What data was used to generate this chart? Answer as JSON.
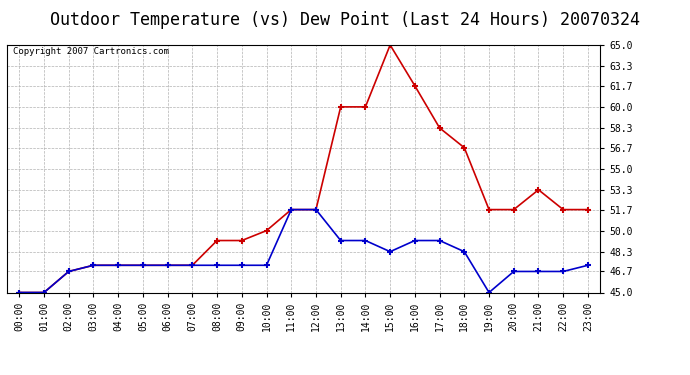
{
  "title": "Outdoor Temperature (vs) Dew Point (Last 24 Hours) 20070324",
  "copyright_text": "Copyright 2007 Cartronics.com",
  "x_labels": [
    "00:00",
    "01:00",
    "02:00",
    "03:00",
    "04:00",
    "05:00",
    "06:00",
    "07:00",
    "08:00",
    "09:00",
    "10:00",
    "11:00",
    "12:00",
    "13:00",
    "14:00",
    "15:00",
    "16:00",
    "17:00",
    "18:00",
    "19:00",
    "20:00",
    "21:00",
    "22:00",
    "23:00"
  ],
  "temp_data": [
    45.0,
    45.0,
    46.7,
    47.2,
    47.2,
    47.2,
    47.2,
    47.2,
    49.2,
    49.2,
    50.0,
    51.7,
    51.7,
    60.0,
    60.0,
    65.0,
    61.7,
    58.3,
    56.7,
    51.7,
    51.7,
    53.3,
    51.7,
    51.7
  ],
  "dew_data": [
    45.0,
    45.0,
    46.7,
    47.2,
    47.2,
    47.2,
    47.2,
    47.2,
    47.2,
    47.2,
    47.2,
    51.7,
    51.7,
    49.2,
    49.2,
    48.3,
    49.2,
    49.2,
    48.3,
    45.0,
    46.7,
    46.7,
    46.7,
    47.2
  ],
  "temp_color": "#cc0000",
  "dew_color": "#0000cc",
  "ylim": [
    45.0,
    65.0
  ],
  "yticks": [
    45.0,
    46.7,
    48.3,
    50.0,
    51.7,
    53.3,
    55.0,
    56.7,
    58.3,
    60.0,
    61.7,
    63.3,
    65.0
  ],
  "grid_color": "#aaaaaa",
  "bg_color": "#ffffff",
  "title_fontsize": 12,
  "copyright_fontsize": 6.5,
  "tick_fontsize": 7,
  "marker": "+",
  "marker_size": 5,
  "marker_edge_width": 1.5,
  "line_width": 1.2
}
